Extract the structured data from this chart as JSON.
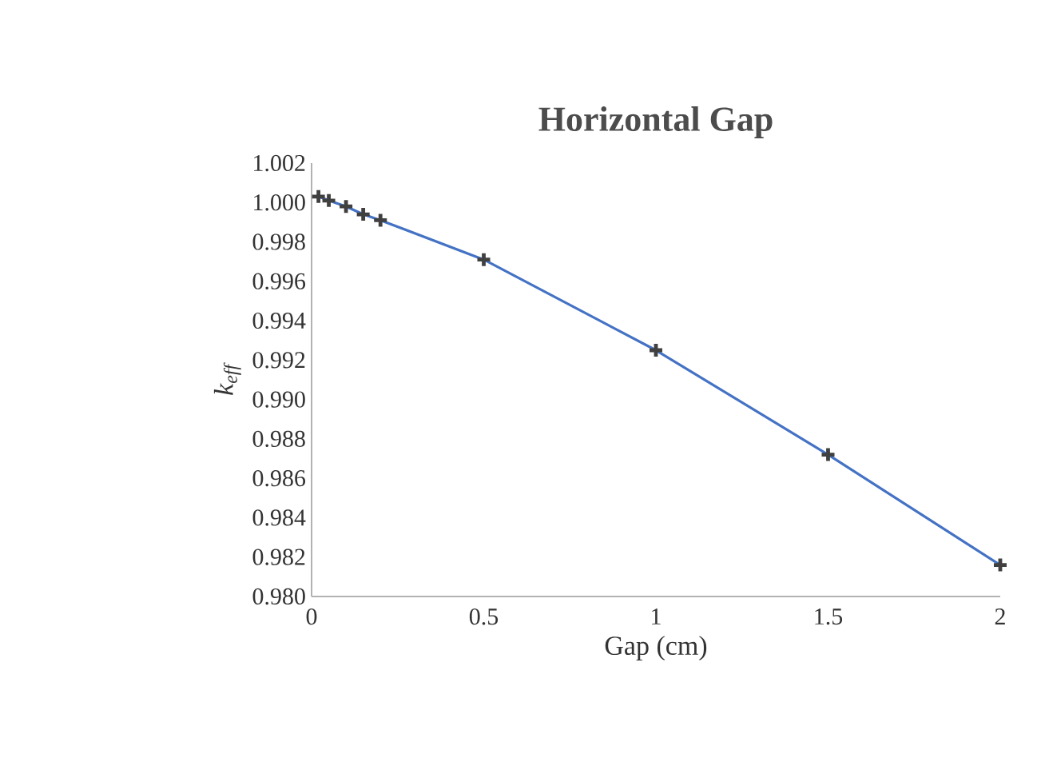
{
  "chart_data": {
    "type": "scatter",
    "title": "Horizontal  Gap",
    "xlabel": "Gap (cm)",
    "ylabel": "k$_{eff}$",
    "xlim": [
      0,
      2
    ],
    "xticks": [
      0,
      0.5,
      1,
      1.5,
      2
    ],
    "ylim": [
      0.98,
      1.002
    ],
    "yticks": [
      {
        "value": 0.98,
        "label": "0.980"
      },
      {
        "value": 0.982,
        "label": "0.982"
      },
      {
        "value": 0.984,
        "label": "0.984"
      },
      {
        "value": 0.986,
        "label": "0.986"
      },
      {
        "value": 0.988,
        "label": "0.988"
      },
      {
        "value": 0.99,
        "label": "0.990"
      },
      {
        "value": 0.992,
        "label": "0.992"
      },
      {
        "value": 0.994,
        "label": "0.994"
      },
      {
        "value": 0.996,
        "label": "0.996"
      },
      {
        "value": 0.998,
        "label": "0.998"
      },
      {
        "value": 1.0,
        "label": "1.000"
      },
      {
        "value": 1.002,
        "label": "1.002"
      }
    ],
    "marker": "cross",
    "series": [
      {
        "color": "#404040",
        "x": [
          0.02,
          0.05,
          0.1,
          0.15,
          0.2,
          0.5,
          1,
          1.5,
          2
        ],
        "values": [
          1.0003,
          1.0001,
          0.9998,
          0.9994,
          0.9991,
          0.9971,
          0.9925,
          0.9872,
          0.9816
        ]
      },
      {
        "type": "line",
        "color": "#4472c4",
        "marker": "none",
        "x": [
          0.02,
          0.05,
          0.1,
          0.15,
          0.2,
          0.5,
          1,
          1.5,
          2
        ],
        "values": [
          1.0003,
          1.0001,
          0.9998,
          0.9994,
          0.9991,
          0.9971,
          0.9925,
          0.9872,
          0.9816
        ]
      }
    ]
  }
}
